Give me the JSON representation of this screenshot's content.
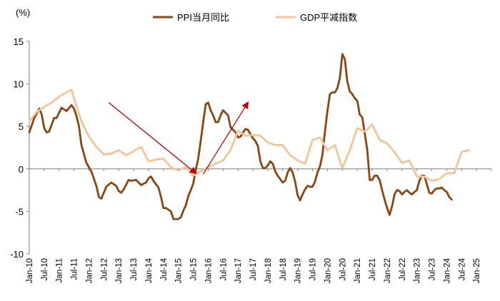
{
  "chart_data": {
    "type": "line",
    "y_unit_label": "(%)",
    "ylim": [
      -10,
      15
    ],
    "yticks": [
      -10,
      -5,
      0,
      5,
      10,
      15
    ],
    "x_start": "2010-01",
    "x_end": "2025-07",
    "x_tick_labels": [
      "Jan-10",
      "Jul-10",
      "Jan-11",
      "Jul-11",
      "Jan-12",
      "Jul-12",
      "Jan-13",
      "Jul-13",
      "Jan-14",
      "Jul-14",
      "Jan-15",
      "Jul-15",
      "Jan-16",
      "Jul-16",
      "Jan-17",
      "Jul-17",
      "Jan-18",
      "Jul-18",
      "Jan-19",
      "Jul-19",
      "Jan-20",
      "Jul-20",
      "Jan-21",
      "Jul-21",
      "Jan-22",
      "Jul-22",
      "Jan-23",
      "Jul-23",
      "Jan-24",
      "Jul-24",
      "Jan-25"
    ],
    "series": [
      {
        "name": "PPI当月同比",
        "color": "#8B4513",
        "points": [
          [
            0,
            4.3
          ],
          [
            2,
            6.0
          ],
          [
            4,
            7.1
          ],
          [
            5,
            6.4
          ],
          [
            6,
            4.8
          ],
          [
            7,
            4.3
          ],
          [
            8,
            4.4
          ],
          [
            10,
            6.0
          ],
          [
            11,
            6.0
          ],
          [
            12,
            6.6
          ],
          [
            13,
            7.2
          ],
          [
            15,
            6.8
          ],
          [
            17,
            7.5
          ],
          [
            18,
            7.1
          ],
          [
            19,
            6.2
          ],
          [
            20,
            5.0
          ],
          [
            21,
            2.8
          ],
          [
            23,
            0.7
          ],
          [
            25,
            -0.3
          ],
          [
            27,
            -2.0
          ],
          [
            28,
            -3.3
          ],
          [
            29,
            -3.5
          ],
          [
            31,
            -2.1
          ],
          [
            33,
            -1.6
          ],
          [
            35,
            -2.0
          ],
          [
            36,
            -2.6
          ],
          [
            37,
            -2.8
          ],
          [
            38,
            -2.4
          ],
          [
            40,
            -1.3
          ],
          [
            41,
            -1.4
          ],
          [
            43,
            -1.3
          ],
          [
            45,
            -1.9
          ],
          [
            47,
            -1.6
          ],
          [
            48,
            -1.1
          ],
          [
            49,
            -0.9
          ],
          [
            50,
            -1.4
          ],
          [
            52,
            -2.2
          ],
          [
            53,
            -3.3
          ],
          [
            54,
            -4.6
          ],
          [
            55,
            -4.6
          ],
          [
            57,
            -5.0
          ],
          [
            58,
            -5.9
          ],
          [
            60,
            -5.9
          ],
          [
            61,
            -5.7
          ],
          [
            62,
            -4.9
          ],
          [
            63,
            -4.3
          ],
          [
            64,
            -3.2
          ],
          [
            65,
            -2.5
          ],
          [
            66,
            -1.7
          ],
          [
            67,
            -0.1
          ],
          [
            68,
            1.2
          ],
          [
            69,
            3.3
          ],
          [
            70,
            5.5
          ],
          [
            71,
            7.6
          ],
          [
            72,
            7.8
          ],
          [
            73,
            6.9
          ],
          [
            74,
            6.3
          ],
          [
            75,
            5.5
          ],
          [
            76,
            5.5
          ],
          [
            77,
            6.3
          ],
          [
            78,
            6.9
          ],
          [
            80,
            6.3
          ],
          [
            81,
            4.9
          ],
          [
            83,
            4.3
          ],
          [
            84,
            3.7
          ],
          [
            85,
            3.8
          ],
          [
            87,
            4.7
          ],
          [
            88,
            4.6
          ],
          [
            89,
            4.1
          ],
          [
            90,
            3.6
          ],
          [
            91,
            3.3
          ],
          [
            92,
            2.7
          ],
          [
            93,
            0.9
          ],
          [
            94,
            0.1
          ],
          [
            95,
            0.1
          ],
          [
            96,
            0.4
          ],
          [
            97,
            0.9
          ],
          [
            98,
            0.6
          ],
          [
            99,
            -0.3
          ],
          [
            100,
            -0.8
          ],
          [
            101,
            -1.2
          ],
          [
            102,
            -1.6
          ],
          [
            103,
            -1.4
          ],
          [
            104,
            -0.4
          ],
          [
            105,
            0.1
          ],
          [
            106,
            -0.4
          ],
          [
            107,
            -1.5
          ],
          [
            108,
            -3.1
          ],
          [
            109,
            -3.7
          ],
          [
            110,
            -3.0
          ],
          [
            111,
            -2.4
          ],
          [
            112,
            -2.0
          ],
          [
            113,
            -2.1
          ],
          [
            114,
            -2.1
          ],
          [
            115,
            -1.5
          ],
          [
            116,
            -0.4
          ],
          [
            117,
            0.3
          ],
          [
            118,
            1.7
          ],
          [
            119,
            4.4
          ],
          [
            120,
            6.8
          ],
          [
            121,
            8.8
          ],
          [
            122,
            9.0
          ],
          [
            123,
            9.0
          ],
          [
            124,
            9.5
          ],
          [
            125,
            10.7
          ],
          [
            126,
            13.5
          ],
          [
            127,
            12.9
          ],
          [
            128,
            10.3
          ],
          [
            129,
            9.1
          ],
          [
            130,
            8.8
          ],
          [
            131,
            8.3
          ],
          [
            132,
            8.0
          ],
          [
            133,
            6.4
          ],
          [
            134,
            6.1
          ],
          [
            135,
            4.2
          ],
          [
            136,
            2.3
          ],
          [
            137,
            -1.3
          ],
          [
            138,
            -1.3
          ],
          [
            139,
            -0.8
          ],
          [
            140,
            -0.8
          ],
          [
            141,
            -1.3
          ],
          [
            142,
            -2.5
          ],
          [
            143,
            -3.6
          ],
          [
            144,
            -4.6
          ],
          [
            145,
            -5.4
          ],
          [
            146,
            -4.4
          ],
          [
            147,
            -3.0
          ],
          [
            148,
            -2.5
          ],
          [
            149,
            -2.6
          ],
          [
            150,
            -3.0
          ],
          [
            151,
            -2.7
          ],
          [
            152,
            -2.5
          ],
          [
            153,
            -2.8
          ],
          [
            154,
            -3.0
          ],
          [
            155,
            -2.7
          ],
          [
            156,
            -2.5
          ],
          [
            157,
            -1.4
          ],
          [
            158,
            -0.8
          ],
          [
            159,
            -0.8
          ],
          [
            160,
            -1.8
          ],
          [
            161,
            -2.8
          ],
          [
            162,
            -2.9
          ],
          [
            163,
            -2.5
          ],
          [
            164,
            -2.3
          ],
          [
            165,
            -2.3
          ],
          [
            166,
            -2.2
          ],
          [
            167,
            -2.5
          ],
          [
            168,
            -2.7
          ],
          [
            169,
            -3.3
          ],
          [
            170,
            -3.6
          ]
        ]
      },
      {
        "name": "GDP平减指数",
        "color": "#F5C396",
        "points": [
          [
            0,
            5.6
          ],
          [
            3,
            6.7
          ],
          [
            6,
            7.3
          ],
          [
            9,
            7.8
          ],
          [
            12,
            8.5
          ],
          [
            15,
            9.0
          ],
          [
            17,
            9.3
          ],
          [
            18,
            8.3
          ],
          [
            21,
            5.6
          ],
          [
            24,
            3.8
          ],
          [
            27,
            2.6
          ],
          [
            30,
            1.7
          ],
          [
            33,
            1.8
          ],
          [
            36,
            2.2
          ],
          [
            39,
            1.6
          ],
          [
            42,
            2.1
          ],
          [
            45,
            2.6
          ],
          [
            48,
            0.9
          ],
          [
            51,
            1.1
          ],
          [
            54,
            1.2
          ],
          [
            57,
            0.2
          ],
          [
            60,
            -0.2
          ],
          [
            63,
            0.2
          ],
          [
            66,
            -0.8
          ],
          [
            69,
            -0.3
          ],
          [
            72,
            0.2
          ],
          [
            75,
            0.6
          ],
          [
            78,
            1.0
          ],
          [
            81,
            2.2
          ],
          [
            84,
            4.5
          ],
          [
            87,
            3.9
          ],
          [
            90,
            4.0
          ],
          [
            93,
            3.9
          ],
          [
            96,
            3.1
          ],
          [
            99,
            2.8
          ],
          [
            102,
            2.8
          ],
          [
            105,
            1.6
          ],
          [
            108,
            1.0
          ],
          [
            111,
            0.6
          ],
          [
            114,
            3.4
          ],
          [
            117,
            3.7
          ],
          [
            120,
            2.2
          ],
          [
            123,
            2.8
          ],
          [
            126,
            0.1
          ],
          [
            129,
            2.2
          ],
          [
            132,
            4.8
          ],
          [
            135,
            4.4
          ],
          [
            138,
            5.2
          ],
          [
            141,
            3.4
          ],
          [
            144,
            3.0
          ],
          [
            147,
            2.0
          ],
          [
            150,
            0.7
          ],
          [
            153,
            1.0
          ],
          [
            156,
            -0.9
          ],
          [
            159,
            -0.9
          ],
          [
            162,
            -1.4
          ],
          [
            165,
            -1.2
          ],
          [
            168,
            -0.5
          ],
          [
            171,
            -0.5
          ],
          [
            174,
            2.0
          ],
          [
            177,
            2.2
          ]
        ]
      }
    ],
    "annotations": [
      {
        "type": "arrow",
        "color": "#C00000",
        "from": [
          32,
          7.8
        ],
        "to": [
          67,
          -0.5
        ]
      },
      {
        "type": "arrow",
        "color": "#C00000",
        "from": [
          70,
          -0.6
        ],
        "to": [
          88,
          7.8
        ]
      }
    ]
  }
}
